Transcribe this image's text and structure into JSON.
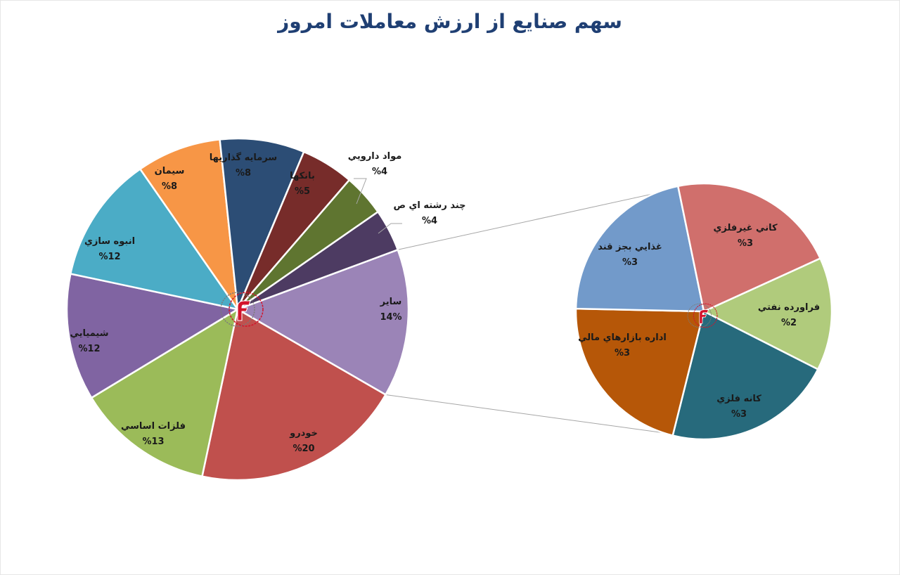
{
  "chart_data": [
    {
      "type": "pie",
      "title": "سهم صنایع از ارزش معاملات امروز",
      "slices": [
        {
          "label": "سایر",
          "value_text": "14%",
          "value": 14,
          "color": "#9b84b7"
        },
        {
          "label": "خودرو",
          "value_text": "%20",
          "value": 20,
          "color": "#c0504d"
        },
        {
          "label": "فلزات اساسي",
          "value_text": "%13",
          "value": 13,
          "color": "#9bbb59"
        },
        {
          "label": "شيميايي",
          "value_text": "%12",
          "value": 12,
          "color": "#8064a2"
        },
        {
          "label": "انبوه سازي",
          "value_text": "%12",
          "value": 12,
          "color": "#4bacc6"
        },
        {
          "label": "سيمان",
          "value_text": "%8",
          "value": 8,
          "color": "#f79646"
        },
        {
          "label": "سرمايه گذاريها",
          "value_text": "%8",
          "value": 8,
          "color": "#2c4d75"
        },
        {
          "label": "بانكها",
          "value_text": "%5",
          "value": 5,
          "color": "#772c2a"
        },
        {
          "label": "مواد دارويي",
          "value_text": "%4",
          "value": 4,
          "color": "#5f7530"
        },
        {
          "label": "چند رشته اي ص",
          "value_text": "%4",
          "value": 4,
          "color": "#4d3b62"
        }
      ]
    },
    {
      "type": "pie",
      "title": "",
      "slices": [
        {
          "label": "فراورده نفتي",
          "value_text": "%2",
          "value": 2,
          "color": "#b0cb7c"
        },
        {
          "label": "كانه فلزي",
          "value_text": "%3",
          "value": 3,
          "color": "#276a7c"
        },
        {
          "label": "اداره بازارهاي مالي",
          "value_text": "%3",
          "value": 3,
          "color": "#b65708"
        },
        {
          "label": "غذايي بجز قند",
          "value_text": "%3",
          "value": 3,
          "color": "#729aca"
        },
        {
          "label": "كاني غيرفلزي",
          "value_text": "%3",
          "value": 3,
          "color": "#d06f6c"
        }
      ]
    }
  ],
  "logo_marks": [
    "logo-mark-main",
    "logo-mark-sub"
  ]
}
